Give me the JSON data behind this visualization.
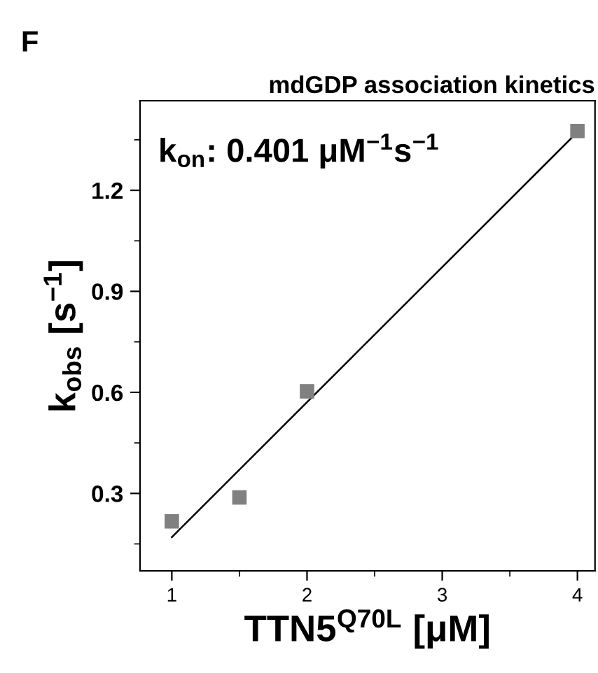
{
  "chart_data": {
    "type": "scatter",
    "title": "mdGDP association kinetics",
    "xlabel": "TTN5$^{Q70L}$ [μM]",
    "ylabel": "k$_{obs}$ [s$^{−1}$]",
    "annotations": [
      "F",
      "k$_{on}$: 0.401 μM$^{−1}$s$^{−1}$"
    ],
    "x": [
      1,
      1.5,
      2,
      4
    ],
    "series": [
      {
        "color": "#808080",
        "marker": "square",
        "values": [
          0.217,
          0.288,
          0.603,
          1.376
        ]
      },
      {
        "type": "line",
        "color": "#000000",
        "marker": "none",
        "x": [
          1,
          4
        ],
        "values": [
          0.17,
          1.373
        ]
      }
    ],
    "xlim": [
      0.765,
      4.13
    ],
    "xticks": [
      1,
      2,
      3,
      4
    ],
    "ylim": [
      0.07,
      1.466
    ],
    "yticks": [
      0.3,
      0.6,
      0.9,
      1.2
    ],
    "grid": false,
    "legend": false
  }
}
